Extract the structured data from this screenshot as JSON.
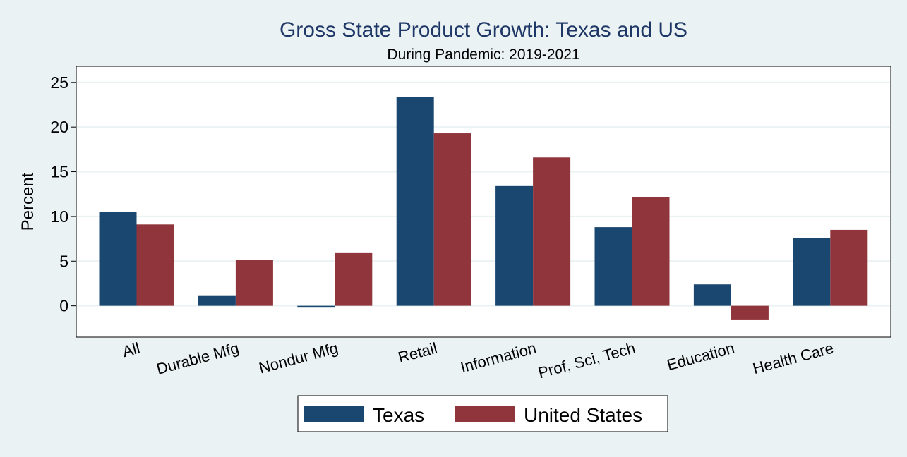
{
  "chart_data": {
    "type": "bar",
    "title": "Gross State Product Growth: Texas and US",
    "subtitle": "During Pandemic: 2019-2021",
    "xlabel": "",
    "ylabel": "Percent",
    "ylim": [
      -3.5,
      26.8
    ],
    "yticks": [
      0,
      5,
      10,
      15,
      20,
      25
    ],
    "grid": true,
    "legend_position": "bottom",
    "categories": [
      "All",
      "Durable Mfg",
      "Nondur Mfg",
      "Retail",
      "Information",
      "Prof, Sci, Tech",
      "Education",
      "Health Care"
    ],
    "series": [
      {
        "name": "Texas",
        "color": "#1a476f",
        "values": [
          10.5,
          1.1,
          -0.2,
          23.4,
          13.4,
          8.8,
          2.4,
          7.6
        ]
      },
      {
        "name": "United States",
        "color": "#90353b",
        "values": [
          9.1,
          5.1,
          5.9,
          19.3,
          16.6,
          12.2,
          -1.6,
          8.5
        ]
      }
    ]
  }
}
